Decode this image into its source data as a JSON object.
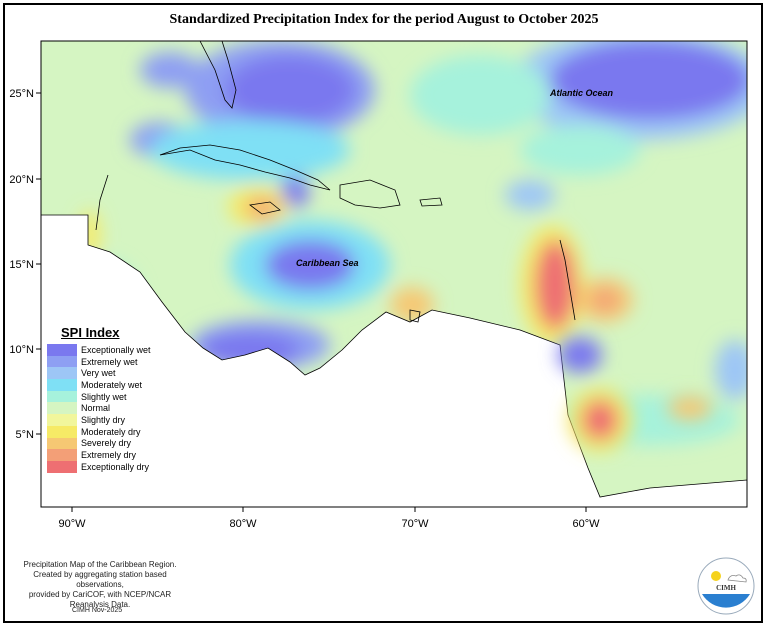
{
  "title": "Standardized Precipitation Index for the period August to October 2025",
  "map": {
    "labels": {
      "atlantic": "Atlantic Ocean",
      "caribbean": "Caribbean Sea"
    },
    "lon_ticks": [
      "90°W",
      "80°W",
      "70°W",
      "60°W"
    ],
    "lat_ticks": [
      "25°N",
      "20°N",
      "15°N",
      "10°N",
      "5°N"
    ],
    "extent": {
      "lon": [
        -91.8,
        -50.6
      ],
      "lat": [
        2.6,
        28.0
      ]
    }
  },
  "legend": {
    "title": "SPI Index",
    "items": [
      {
        "label": "Exceptionally wet",
        "color": "#7a78ef"
      },
      {
        "label": "Extremely wet",
        "color": "#8e9ff3"
      },
      {
        "label": "Very wet",
        "color": "#9dc6f6"
      },
      {
        "label": "Moderately wet",
        "color": "#7fe0f5"
      },
      {
        "label": "Slightly wet",
        "color": "#a6f2dc"
      },
      {
        "label": "Normal",
        "color": "#d5f5c2"
      },
      {
        "label": "Slightly dry",
        "color": "#f1f69c"
      },
      {
        "label": "Moderately dry",
        "color": "#f6ea66"
      },
      {
        "label": "Severely dry",
        "color": "#f6c873"
      },
      {
        "label": "Extremely dry",
        "color": "#f39f77"
      },
      {
        "label": "Exceptionally dry",
        "color": "#ee6f72"
      }
    ]
  },
  "credit": {
    "line1": "Precipitation Map of the Caribbean Region.",
    "line2": "Created by aggregating station based observations,",
    "line3": "provided by CariCOF, with NCEP/NCAR Reanalysis Data."
  },
  "stamp": "CIMH Nov-2025",
  "logo": {
    "text": "CIMH"
  }
}
